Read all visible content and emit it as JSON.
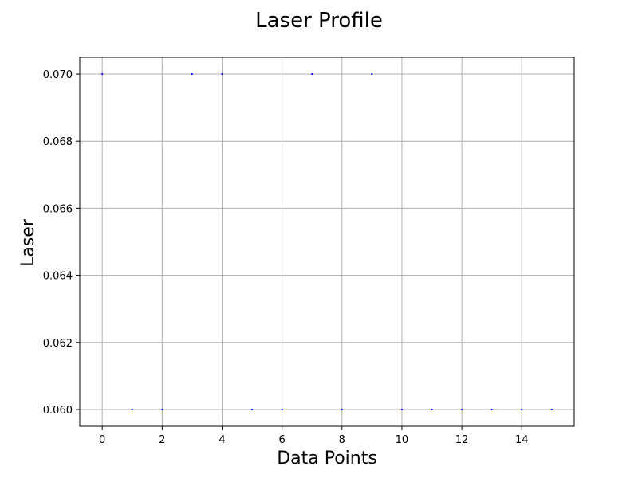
{
  "chart_data": {
    "type": "scatter",
    "title": "Laser Profile",
    "xlabel": "Data Points",
    "ylabel": "Laser",
    "xlim": [
      -0.75,
      15.75
    ],
    "ylim": [
      0.0595,
      0.0705
    ],
    "x_ticks": [
      0,
      2,
      4,
      6,
      8,
      10,
      12,
      14
    ],
    "x_tick_labels": [
      "0",
      "2",
      "4",
      "6",
      "8",
      "10",
      "12",
      "14"
    ],
    "y_ticks": [
      0.06,
      0.062,
      0.064,
      0.066,
      0.068,
      0.07
    ],
    "y_tick_labels": [
      "0.060",
      "0.062",
      "0.064",
      "0.066",
      "0.068",
      "0.070"
    ],
    "grid": true,
    "legend": false,
    "marker_color": "#0000ff",
    "grid_color": "#b0b0b0",
    "x": [
      0,
      1,
      2,
      3,
      4,
      5,
      6,
      7,
      8,
      9,
      10,
      11,
      12,
      13,
      14,
      15
    ],
    "y": [
      0.07,
      0.06,
      0.06,
      0.07,
      0.07,
      0.06,
      0.06,
      0.07,
      0.06,
      0.07,
      0.06,
      0.06,
      0.06,
      0.06,
      0.06,
      0.06
    ]
  }
}
